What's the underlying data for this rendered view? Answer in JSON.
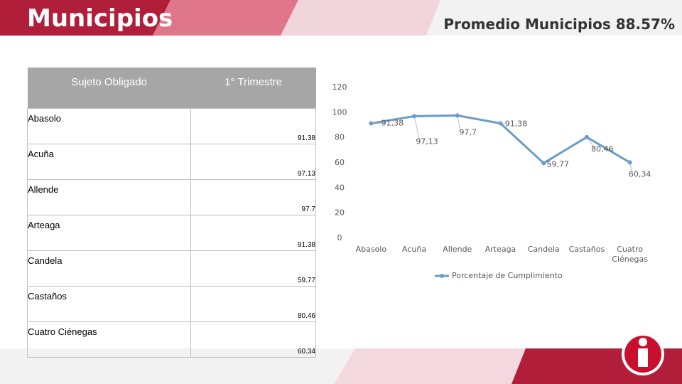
{
  "header": {
    "title": "Municipios"
  },
  "table": {
    "columns": [
      "Sujeto Obligado",
      "1° Trimestre"
    ],
    "rows": [
      [
        "Abasolo",
        91.38
      ],
      [
        "Acuña",
        97.13
      ],
      [
        "Allende",
        97.7
      ],
      [
        "Arteaga",
        91.38
      ],
      [
        "Candela",
        59.77
      ],
      [
        "Castaños",
        80.46
      ],
      [
        "Cuatro Ciénegas",
        60.34
      ]
    ]
  },
  "chart_data": {
    "type": "line",
    "title": "Promedio Municipios 88.57%",
    "categories": [
      "Abasolo",
      "Acuña",
      "Allende",
      "Arteaga",
      "Candela",
      "Castaños",
      "Cuatro Ciénegas"
    ],
    "series": [
      {
        "name": "Porcentaje de Cumplimiento",
        "color": "#6b9bcb",
        "values": [
          91.38,
          97.13,
          97.7,
          91.38,
          59.77,
          80.46,
          60.34
        ],
        "value_labels": [
          "91,38",
          "97,13",
          "97,7",
          "91,38",
          "59,77",
          "80,46",
          "60,34"
        ]
      }
    ],
    "ylim": [
      0,
      120
    ],
    "yticks": [
      0,
      20,
      40,
      60,
      80,
      100,
      120
    ],
    "grid": false,
    "legend": "bottom"
  }
}
